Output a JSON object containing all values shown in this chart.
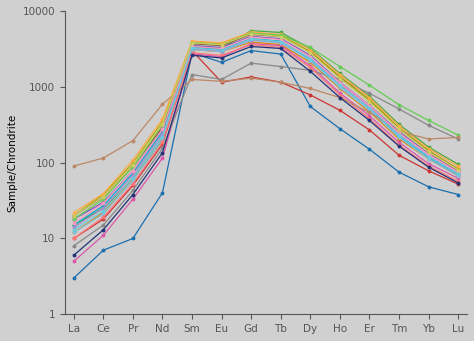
{
  "elements": [
    "La",
    "Ce",
    "Pr",
    "Nd",
    "Sm",
    "Eu",
    "Gd",
    "Tb",
    "Dy",
    "Ho",
    "Er",
    "Tm",
    "Yb",
    "Lu"
  ],
  "ylabel": "Sample/Chrondrite",
  "ylim": [
    1,
    10000
  ],
  "background_color": "#d0d0d0",
  "plot_bg": "#d0d0d0",
  "series": [
    {
      "color": "#1a6faf",
      "data": [
        3.0,
        7,
        10,
        40,
        2800,
        2100,
        3000,
        2700,
        550,
        280,
        150,
        75,
        48,
        38
      ]
    },
    {
      "color": "#44aa44",
      "data": [
        15,
        25,
        60,
        200,
        3400,
        3200,
        5500,
        5200,
        3200,
        1500,
        750,
        320,
        160,
        95
      ]
    },
    {
      "color": "#cc3333",
      "data": [
        10,
        18,
        50,
        175,
        3000,
        1150,
        1350,
        1150,
        780,
        490,
        270,
        125,
        78,
        52
      ]
    },
    {
      "color": "#dd8800",
      "data": [
        12,
        22,
        62,
        215,
        3100,
        2900,
        3900,
        3600,
        2100,
        950,
        470,
        205,
        112,
        67
      ]
    },
    {
      "color": "#7755bb",
      "data": [
        18,
        30,
        78,
        275,
        3500,
        3300,
        4600,
        4300,
        2600,
        1150,
        570,
        255,
        132,
        77
      ]
    },
    {
      "color": "#885533",
      "data": [
        20,
        35,
        88,
        295,
        3700,
        3500,
        4900,
        4600,
        2900,
        1350,
        670,
        285,
        143,
        82
      ]
    },
    {
      "color": "#dd55aa",
      "data": [
        5,
        11,
        33,
        115,
        2700,
        2500,
        3700,
        3500,
        1900,
        830,
        415,
        185,
        97,
        62
      ]
    },
    {
      "color": "#888888",
      "data": [
        8,
        15,
        43,
        155,
        1450,
        1250,
        2050,
        1850,
        1650,
        1250,
        820,
        510,
        310,
        205
      ]
    },
    {
      "color": "#aaaa00",
      "data": [
        20,
        38,
        98,
        345,
        3900,
        3700,
        5100,
        4700,
        2900,
        1350,
        670,
        285,
        143,
        82
      ]
    },
    {
      "color": "#00aacc",
      "data": [
        15,
        27,
        73,
        255,
        3300,
        3100,
        4300,
        4000,
        2300,
        1050,
        520,
        225,
        117,
        70
      ]
    },
    {
      "color": "#88bbdd",
      "data": [
        12,
        21,
        58,
        205,
        3100,
        2900,
        4100,
        3800,
        2200,
        980,
        490,
        215,
        112,
        67
      ]
    },
    {
      "color": "#ffaa44",
      "data": [
        22,
        39,
        108,
        375,
        4000,
        3800,
        5300,
        4900,
        3100,
        1450,
        720,
        305,
        153,
        90
      ]
    },
    {
      "color": "#66cc55",
      "data": [
        18,
        33,
        88,
        315,
        3800,
        3600,
        5100,
        4800,
        3300,
        1850,
        1050,
        580,
        360,
        230
      ]
    },
    {
      "color": "#ff7777",
      "data": [
        10,
        19,
        53,
        185,
        2800,
        2600,
        3600,
        3300,
        1800,
        780,
        380,
        170,
        90,
        57
      ]
    },
    {
      "color": "#aa88cc",
      "data": [
        14,
        25,
        68,
        235,
        3200,
        3000,
        4200,
        3900,
        2400,
        1080,
        535,
        235,
        122,
        72
      ]
    },
    {
      "color": "#bb8866",
      "data": [
        90,
        115,
        195,
        590,
        1250,
        1180,
        1300,
        1150,
        950,
        720,
        460,
        258,
        205,
        215
      ]
    },
    {
      "color": "#ff99bb",
      "data": [
        16,
        29,
        78,
        275,
        3400,
        3200,
        4500,
        4200,
        2500,
        1130,
        565,
        245,
        128,
        75
      ]
    },
    {
      "color": "#cccc66",
      "data": [
        20,
        35,
        93,
        325,
        3800,
        3600,
        5000,
        4600,
        2800,
        1280,
        635,
        275,
        138,
        80
      ]
    },
    {
      "color": "#66ccdd",
      "data": [
        13,
        23,
        63,
        220,
        3250,
        3050,
        4250,
        3950,
        2350,
        1040,
        522,
        230,
        120,
        71
      ]
    },
    {
      "color": "#223377",
      "data": [
        6,
        13,
        38,
        135,
        2600,
        2400,
        3400,
        3200,
        1600,
        720,
        360,
        165,
        87,
        54
      ]
    }
  ]
}
